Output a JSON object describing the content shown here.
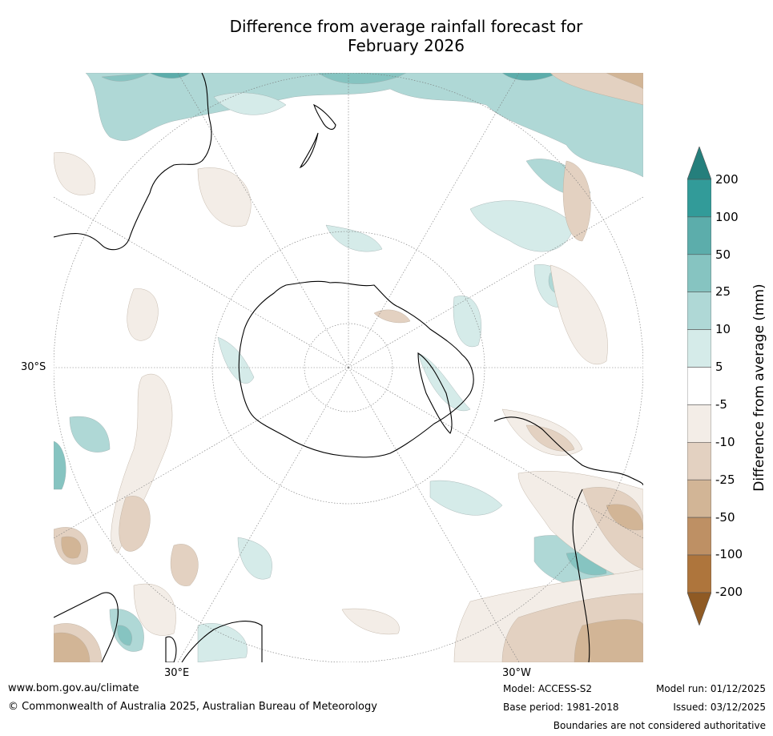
{
  "title_line1": "Difference from average rainfall forecast for",
  "title_line2": "February 2026",
  "map": {
    "projection": "south-polar-stereographic",
    "lat_labels": [
      "30°S"
    ],
    "lon_labels": [
      "30°E",
      "30°W"
    ]
  },
  "colorbar": {
    "label": "Difference from average (mm)",
    "ticks": [
      "200",
      "100",
      "50",
      "25",
      "10",
      "5",
      "-5",
      "-10",
      "-25",
      "-50",
      "-100",
      "-200"
    ],
    "colors": {
      "gt_200": "#257f7c",
      "100_200": "#329b99",
      "50_100": "#5cadab",
      "25_50": "#86c4c1",
      "10_25": "#afd8d6",
      "5_10": "#d5ebe9",
      "neutral": "#ffffff",
      "neg5_neg10": "#f3ede7",
      "neg10_neg25": "#e3d1c1",
      "neg25_neg50": "#d2b596",
      "neg50_neg100": "#be9064",
      "neg100_neg200": "#ae753c",
      "lt_neg200": "#8f5a24"
    }
  },
  "footer": {
    "url": "www.bom.gov.au/climate",
    "copyright": "© Commonwealth of Australia 2025, Australian Bureau of Meteorology",
    "model": "Model: ACCESS-S2",
    "base_period": "Base period: 1981-2018",
    "model_run": "Model run: 01/12/2025",
    "issued": "Issued: 03/12/2025",
    "disclaimer": "Boundaries are not considered authoritative"
  }
}
